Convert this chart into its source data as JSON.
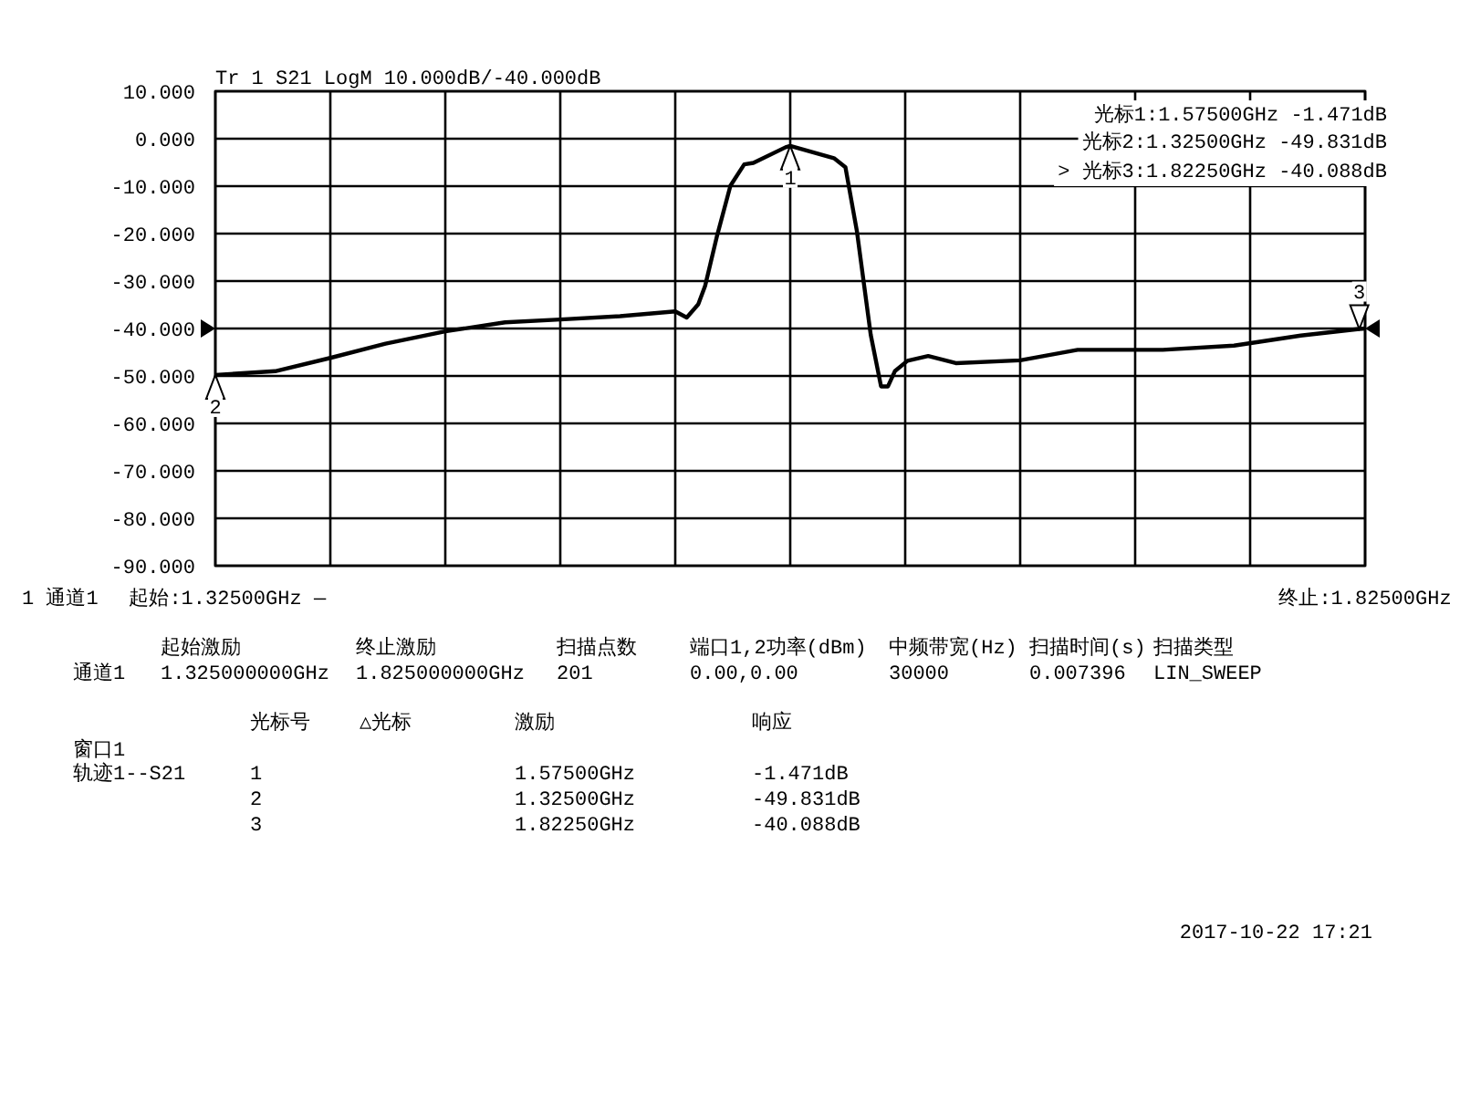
{
  "chart_data": {
    "type": "line",
    "title": "Tr 1  S21 LogM 10.000dB/-40.000dB",
    "xlim": [
      1.325,
      1.825
    ],
    "xticks": [
      {
        "value": 1.325,
        "label": "起始:1.32500GHz"
      },
      {
        "value": 1.375,
        "label": null
      },
      {
        "value": 1.425,
        "label": null
      },
      {
        "value": 1.475,
        "label": null
      },
      {
        "value": 1.525,
        "label": null
      },
      {
        "value": 1.575,
        "label": null
      },
      {
        "value": 1.625,
        "label": null
      },
      {
        "value": 1.675,
        "label": null
      },
      {
        "value": 1.725,
        "label": null
      },
      {
        "value": 1.775,
        "label": null
      },
      {
        "value": 1.825,
        "label": "终止:1.82500GHz"
      }
    ],
    "ylim": [
      -90,
      10
    ],
    "yticks": [
      {
        "value": 10,
        "label": "10.000"
      },
      {
        "value": 0,
        "label": "0.000"
      },
      {
        "value": -10,
        "label": "-10.000"
      },
      {
        "value": -20,
        "label": "-20.000"
      },
      {
        "value": -30,
        "label": "-30.000"
      },
      {
        "value": -40,
        "label": "-40.000"
      },
      {
        "value": -50,
        "label": "-50.000"
      },
      {
        "value": -60,
        "label": "-60.000"
      },
      {
        "value": -70,
        "label": "-70.000"
      },
      {
        "value": -80,
        "label": "-80.000"
      },
      {
        "value": -90,
        "label": "-90.000"
      }
    ],
    "grid": true,
    "marker": "none",
    "line_style": "solid",
    "series": [
      {
        "color": "#000000",
        "x": [
          1.325,
          1.351,
          1.375,
          1.399,
          1.425,
          1.451,
          1.475,
          1.501,
          1.525,
          1.53,
          1.535,
          1.538,
          1.543,
          1.549,
          1.555,
          1.559,
          1.573,
          1.575,
          1.594,
          1.599,
          1.604,
          1.61,
          1.6145,
          1.6175,
          1.6205,
          1.626,
          1.635,
          1.647,
          1.675,
          1.7,
          1.737,
          1.768,
          1.797,
          1.8225,
          1.825
        ],
        "values": [
          -49.8,
          -49,
          -46.2,
          -43.2,
          -40.6,
          -38.7,
          -38.1,
          -37.4,
          -36.4,
          -37.7,
          -34.9,
          -31,
          -20.8,
          -9.9,
          -5.4,
          -5.1,
          -1.8,
          -1.5,
          -4.1,
          -6,
          -19.5,
          -41.3,
          -52.2,
          -52.2,
          -49,
          -46.8,
          -45.8,
          -47.3,
          -46.7,
          -44.5,
          -44.5,
          -43.6,
          -41.5,
          -40.1,
          -40
        ]
      }
    ],
    "annotations": [
      {
        "text": "1",
        "x": 1.575,
        "y": -1.5
      },
      {
        "text": "2",
        "x": 1.325,
        "y": -49.8
      },
      {
        "text": "3",
        "x": 1.8225,
        "y": -40.1
      },
      "光标1:1.57500GHz -1.471dB",
      "光标2:1.32500GHz -49.831dB",
      "> 光标3:1.82250GHz -40.088dB",
      "1  通道1",
      "—",
      "起始激励",
      "终止激励",
      "扫描点数",
      "端口1,2功率(dBm)",
      "中频带宽(Hz)",
      "扫描时间(s)",
      "扫描类型",
      "通道1",
      "1.325000000GHz",
      "1.825000000GHz",
      "201",
      "0.00,0.00",
      "30000",
      "0.007396",
      "LIN_SWEEP",
      "光标号",
      "△光标",
      "激励",
      "响应",
      "窗口1",
      "轨迹1--S21",
      "1",
      "1.57500GHz",
      "-1.471dB",
      "2",
      "1.32500GHz",
      "-49.831dB",
      "3",
      "1.82250GHz",
      "-40.088dB",
      "2017-10-22 17:21"
    ]
  }
}
